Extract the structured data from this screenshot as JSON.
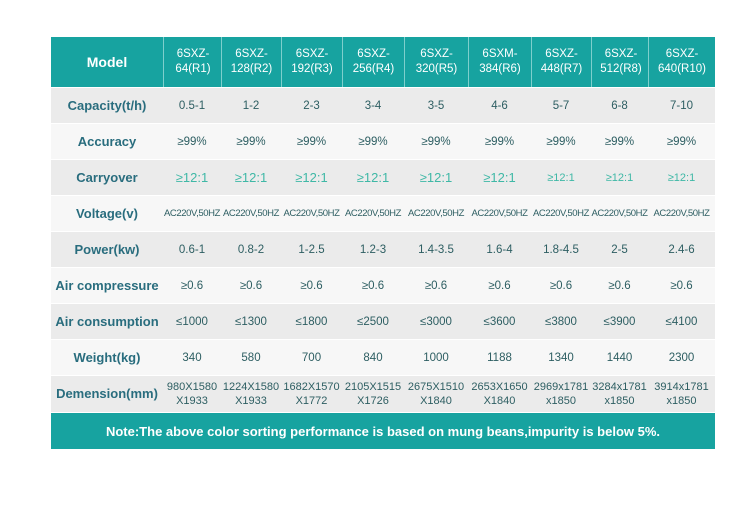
{
  "header": {
    "label": "Model",
    "models": [
      [
        "6SXZ-",
        "64(R1)"
      ],
      [
        "6SXZ-",
        "128(R2)"
      ],
      [
        "6SXZ-",
        "192(R3)"
      ],
      [
        "6SXZ-",
        "256(R4)"
      ],
      [
        "6SXZ-",
        "320(R5)"
      ],
      [
        "6SXM-",
        "384(R6)"
      ],
      [
        "6SXZ-",
        "448(R7)"
      ],
      [
        "6SXZ-",
        "512(R8)"
      ],
      [
        "6SXZ-",
        "640(R10)"
      ]
    ]
  },
  "rows": [
    {
      "key": "capacity",
      "label": "Capacity(t/h)",
      "values": [
        "0.5-1",
        "1-2",
        "2-3",
        "3-4",
        "3-5",
        "4-6",
        "5-7",
        "6-8",
        "7-10"
      ]
    },
    {
      "key": "accuracy",
      "label": "Accuracy",
      "values": [
        "≥99%",
        "≥99%",
        "≥99%",
        "≥99%",
        "≥99%",
        "≥99%",
        "≥99%",
        "≥99%",
        "≥99%"
      ]
    },
    {
      "key": "carryover",
      "label": "Carryover",
      "values": [
        "≥12:1",
        "≥12:1",
        "≥12:1",
        "≥12:1",
        "≥12:1",
        "≥12:1",
        "≥12:1",
        "≥12:1",
        "≥12:1"
      ]
    },
    {
      "key": "voltage",
      "label": "Voltage(v)",
      "values": [
        "AC220V,50HZ",
        "AC220V,50HZ",
        "AC220V,50HZ",
        "AC220V,50HZ",
        "AC220V,50HZ",
        "AC220V,50HZ",
        "AC220V,50HZ",
        "AC220V,50HZ",
        "AC220V,50HZ"
      ]
    },
    {
      "key": "power",
      "label": "Power(kw)",
      "values": [
        "0.6-1",
        "0.8-2",
        "1-2.5",
        "1.2-3",
        "1.4-3.5",
        "1.6-4",
        "1.8-4.5",
        "2-5",
        "2.4-6"
      ]
    },
    {
      "key": "air_compressure",
      "label": "Air compressure",
      "values": [
        "≥0.6",
        "≥0.6",
        "≥0.6",
        "≥0.6",
        "≥0.6",
        "≥0.6",
        "≥0.6",
        "≥0.6",
        "≥0.6"
      ]
    },
    {
      "key": "air_consumption",
      "label": "Air consumption",
      "values": [
        "≤1000",
        "≤1300",
        "≤1800",
        "≤2500",
        "≤3000",
        "≤3600",
        "≤3800",
        "≤3900",
        "≤4100"
      ]
    },
    {
      "key": "weight",
      "label": "Weight(kg)",
      "values": [
        "340",
        "580",
        "700",
        "840",
        "1000",
        "1188",
        "1340",
        "1440",
        "2300"
      ]
    },
    {
      "key": "dimension",
      "label": "Demension(mm)",
      "values": [
        [
          "980X1580",
          "X1933"
        ],
        [
          "1224X1580",
          "X1933"
        ],
        [
          "1682X1570",
          "X1772"
        ],
        [
          "2105X1515",
          "X1726"
        ],
        [
          "2675X1510",
          "X1840"
        ],
        [
          "2653X1650",
          "X1840"
        ],
        [
          "2969x1781",
          "x1850"
        ],
        [
          "3284x1781",
          "x1850"
        ],
        [
          "3914x1781",
          "x1850"
        ]
      ]
    }
  ],
  "note": "Note:The above color sorting performance is based on mung beans,impurity is below 5%."
}
